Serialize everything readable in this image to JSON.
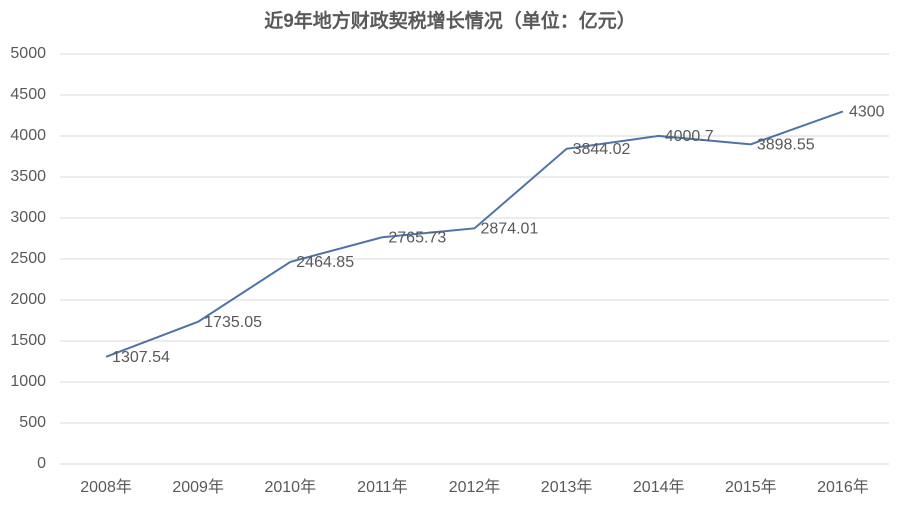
{
  "chart_data": {
    "type": "line",
    "title": "近9年地方财政契税增长情况（单位：亿元）",
    "categories": [
      "2008年",
      "2009年",
      "2010年",
      "2011年",
      "2012年",
      "2013年",
      "2014年",
      "2015年",
      "2016年"
    ],
    "series": [
      {
        "name": "契税",
        "color": "#4e73a6",
        "values": [
          1307.54,
          1735.05,
          2464.85,
          2765.73,
          2874.01,
          3844.02,
          4000.7,
          3898.55,
          4300
        ]
      }
    ],
    "ylim": [
      0,
      5000
    ],
    "yticks": [
      0,
      500,
      1000,
      1500,
      2000,
      2500,
      3000,
      3500,
      4000,
      4500,
      5000
    ],
    "grid": true
  }
}
